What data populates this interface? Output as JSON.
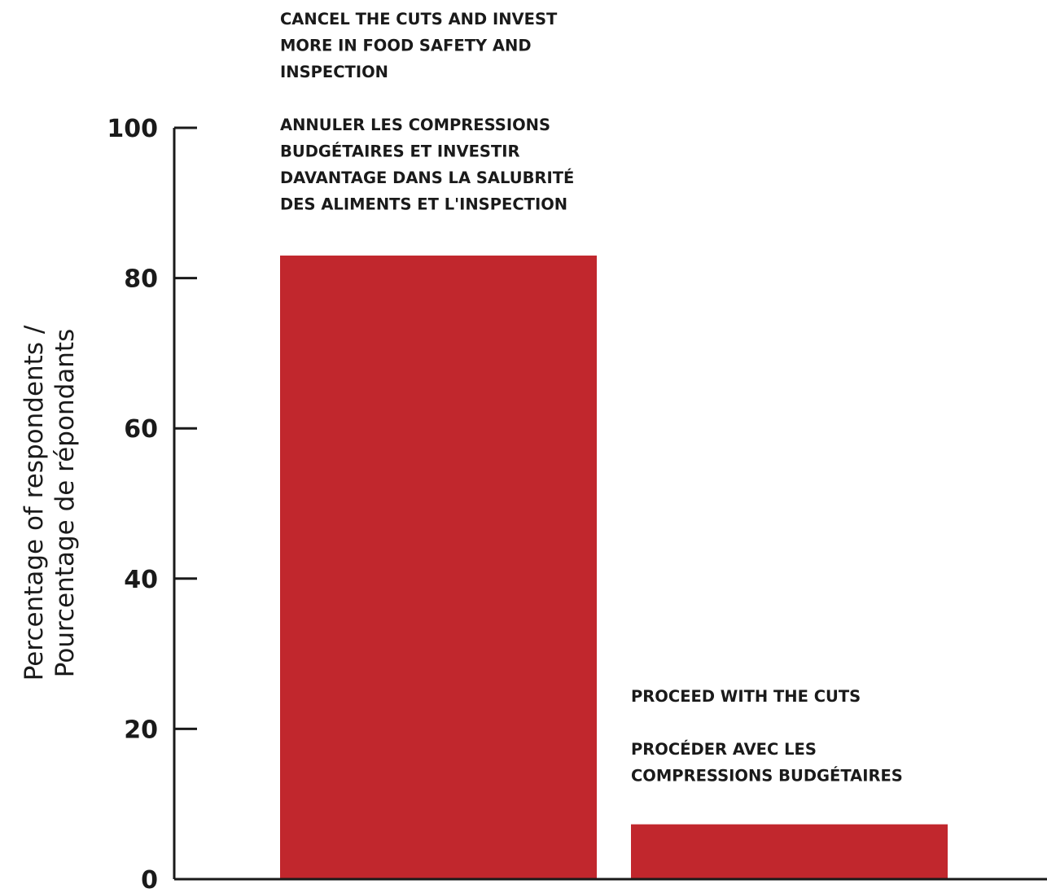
{
  "chart_data": {
    "type": "bar",
    "categories": [
      "Cancel the cuts and invest more in food safety and inspection",
      "Proceed with the cuts"
    ],
    "values": [
      83,
      7.3
    ],
    "ylim": [
      0,
      100
    ],
    "yticks": [
      0,
      20,
      40,
      60,
      80,
      100
    ],
    "ylabel_lines": [
      "Percentage of respondents /",
      "Pourcentage de répondants"
    ],
    "bar_color": "#c1272d",
    "grid": false,
    "annotations": [
      {
        "en": [
          "CANCEL THE CUTS AND INVEST",
          "MORE IN FOOD SAFETY AND",
          "INSPECTION"
        ],
        "fr": [
          "ANNULER LES COMPRESSIONS",
          "BUDGÉTAIRES ET INVESTIR",
          "DAVANTAGE DANS LA SALUBRITÉ",
          "DES ALIMENTS ET L'INSPECTION"
        ]
      },
      {
        "en": [
          "PROCEED WITH THE CUTS"
        ],
        "fr": [
          "PROCÉDER AVEC LES",
          "COMPRESSIONS BUDGÉTAIRES"
        ]
      }
    ]
  }
}
